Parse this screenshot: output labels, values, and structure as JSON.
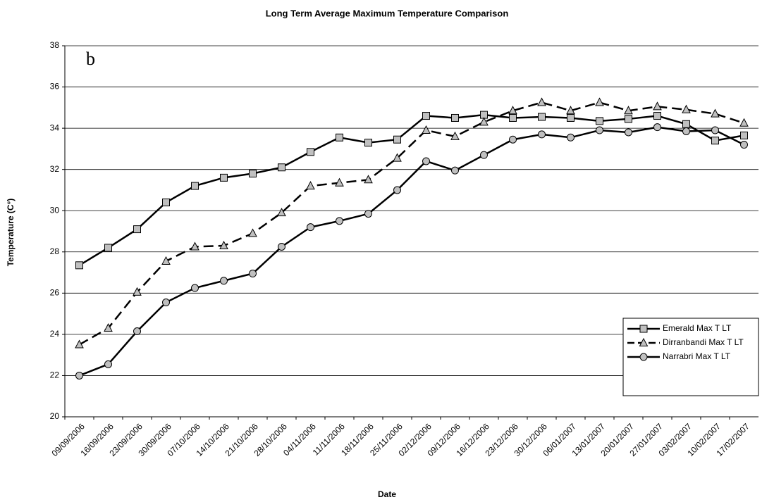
{
  "chart_data": {
    "type": "line",
    "title": "Long Term Average Maximum Temperature Comparison",
    "x_label": "Date",
    "y_label": "Temperature (C°)",
    "annotation": "b",
    "categories": [
      "09/09/2006",
      "16/09/2006",
      "23/09/2006",
      "30/09/2006",
      "07/10/2006",
      "14/10/2006",
      "21/10/2006",
      "28/10/2006",
      "04/11/2006",
      "11/11/2006",
      "18/11/2006",
      "25/11/2006",
      "02/12/2006",
      "09/12/2006",
      "16/12/2006",
      "23/12/2006",
      "30/12/2006",
      "06/01/2007",
      "13/01/2007",
      "20/01/2007",
      "27/01/2007",
      "03/02/2007",
      "10/02/2007",
      "17/02/2007"
    ],
    "series": [
      {
        "name": "Emerald Max T LT",
        "color": "#000000",
        "marker": "square",
        "marker_color": "#c0c0c0",
        "dashed": false,
        "values": [
          27.35,
          28.2,
          29.1,
          30.4,
          31.2,
          31.6,
          31.8,
          32.1,
          32.85,
          33.55,
          33.3,
          33.45,
          34.6,
          34.5,
          34.65,
          34.5,
          34.55,
          34.5,
          34.35,
          34.45,
          34.6,
          34.2,
          33.4,
          33.65
        ]
      },
      {
        "name": "Dirranbandi Max T LT",
        "color": "#000000",
        "marker": "triangle",
        "marker_color": "#c0c0c0",
        "dashed": true,
        "values": [
          23.5,
          24.3,
          26.05,
          27.55,
          28.25,
          28.3,
          28.9,
          29.9,
          31.2,
          31.35,
          31.5,
          32.55,
          33.9,
          33.6,
          34.3,
          34.85,
          35.25,
          34.85,
          35.25,
          34.85,
          35.05,
          34.9,
          34.7,
          34.25
        ]
      },
      {
        "name": "Narrabri Max T LT",
        "color": "#000000",
        "marker": "circle",
        "marker_color": "#c0c0c0",
        "dashed": false,
        "values": [
          22.0,
          22.55,
          24.15,
          25.55,
          26.25,
          26.6,
          26.95,
          28.25,
          29.2,
          29.5,
          29.85,
          31.0,
          32.4,
          31.95,
          32.7,
          33.45,
          33.7,
          33.55,
          33.9,
          33.8,
          34.05,
          33.85,
          33.9,
          33.2
        ]
      }
    ],
    "ylim": [
      20,
      38
    ],
    "yticks": [
      20,
      22,
      24,
      26,
      28,
      30,
      32,
      34,
      36,
      38
    ],
    "grid": true,
    "legend": "right"
  }
}
